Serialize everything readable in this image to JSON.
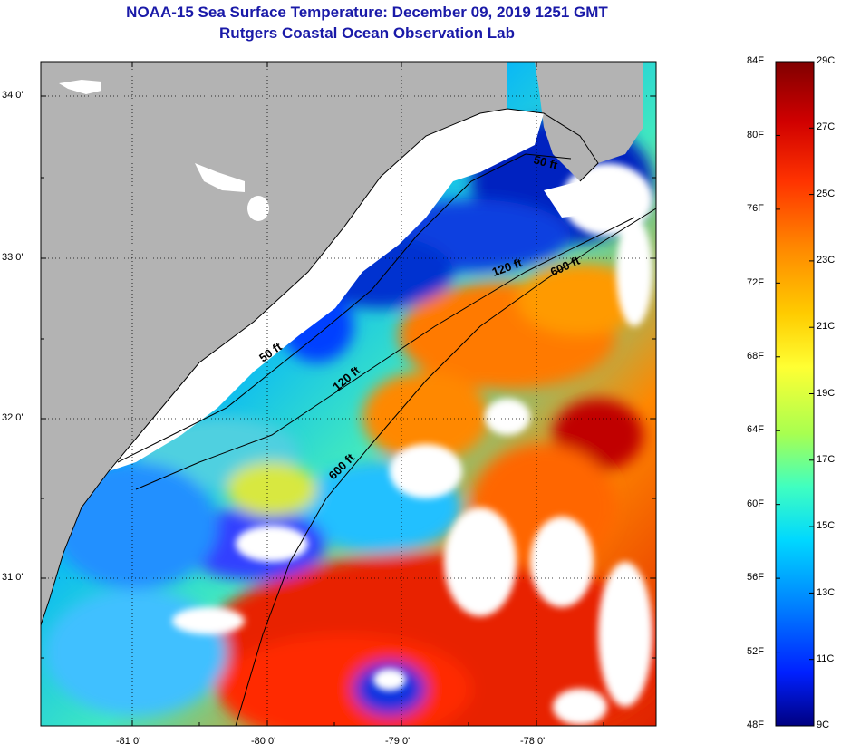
{
  "header": {
    "title": "NOAA-15 Sea Surface Temperature:  December 09, 2019 1251 GMT",
    "subtitle": "Rutgers Coastal Ocean Observation Lab"
  },
  "map": {
    "lat_labels": [
      "34 0'",
      "33 0'",
      "32 0'",
      "31 0'"
    ],
    "lon_labels": [
      "-81 0'",
      "-80 0'",
      "-79 0'",
      "-78 0'"
    ],
    "contour_labels": [
      {
        "id": "50ft-north",
        "text": "50 ft"
      },
      {
        "id": "50ft-mid",
        "text": "50 ft"
      },
      {
        "id": "120ft-north",
        "text": "120 ft"
      },
      {
        "id": "120ft-mid",
        "text": "120 ft"
      },
      {
        "id": "600ft-north",
        "text": "600 ft"
      },
      {
        "id": "600ft-mid",
        "text": "600 ft"
      }
    ],
    "colors": {
      "land": "#b3b3b3",
      "cloud": "#ffffff",
      "contour": "#000000"
    }
  },
  "colorbar": {
    "fahrenheit_labels": [
      "84F",
      "80F",
      "76F",
      "72F",
      "68F",
      "64F",
      "60F",
      "56F",
      "52F",
      "48F"
    ],
    "celsius_labels": [
      "29C",
      "27C",
      "25C",
      "23C",
      "21C",
      "19C",
      "17C",
      "15C",
      "13C",
      "11C",
      "9C"
    ],
    "range_f": [
      48,
      84
    ],
    "range_c": [
      9,
      29
    ],
    "gradient_stops": [
      "#800000",
      "#d00000",
      "#ff3300",
      "#ff8800",
      "#ffcc00",
      "#ffff33",
      "#a8ff50",
      "#40ffc0",
      "#00d8ff",
      "#0080ff",
      "#0020ff",
      "#000080"
    ]
  }
}
